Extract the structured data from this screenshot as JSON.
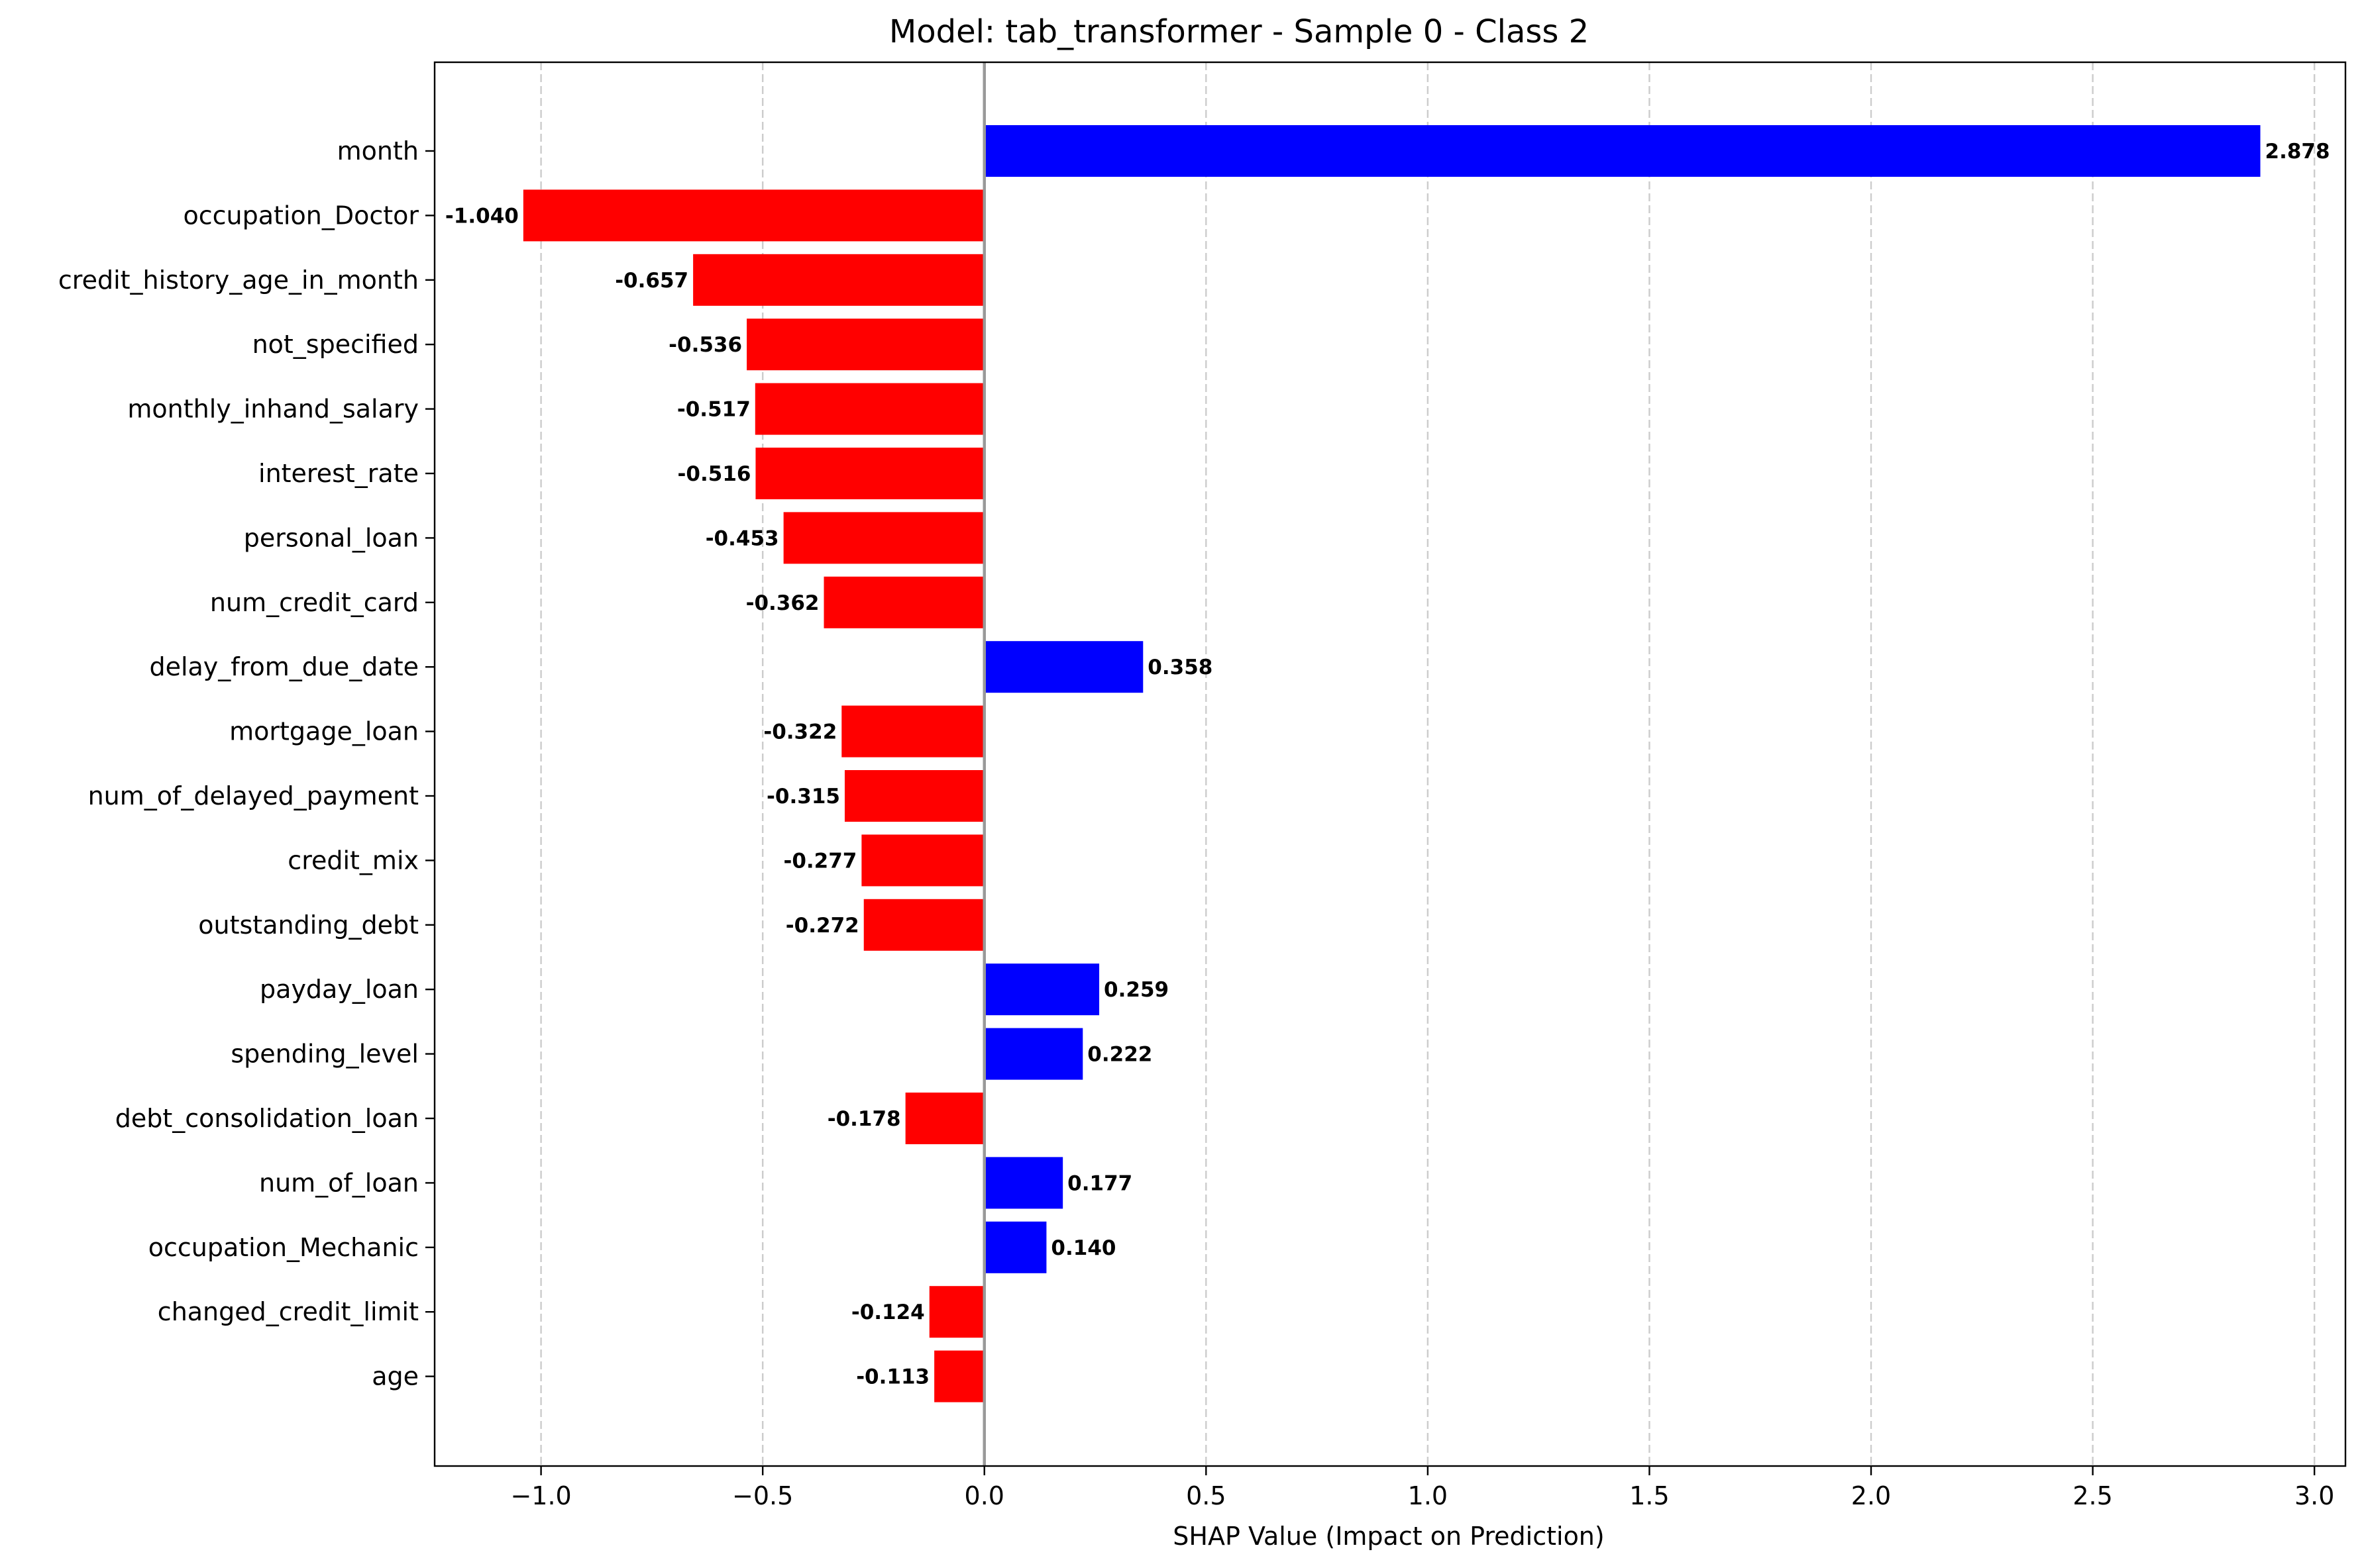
{
  "chart_data": {
    "type": "bar",
    "orientation": "horizontal",
    "title": "Model: tab_transformer - Sample 0 - Class 2",
    "xlabel": "SHAP Value (Impact on Prediction)",
    "ylabel": "",
    "xlim": [
      -1.24,
      3.07
    ],
    "xticks": [
      -1.0,
      -0.5,
      0.0,
      0.5,
      1.0,
      1.5,
      2.0,
      2.5,
      3.0
    ],
    "xtick_labels": [
      "−1.0",
      "−0.5",
      "0.0",
      "0.5",
      "1.0",
      "1.5",
      "2.0",
      "2.5",
      "3.0"
    ],
    "grid": "x-dashed",
    "colors": {
      "positive": "#0000ff",
      "negative": "#ff0000",
      "zero_line": "#999999",
      "grid": "#cccccc"
    },
    "categories": [
      "month",
      "occupation_Doctor",
      "credit_history_age_in_month",
      "not_specified",
      "monthly_inhand_salary",
      "interest_rate",
      "personal_loan",
      "num_credit_card",
      "delay_from_due_date",
      "mortgage_loan",
      "num_of_delayed_payment",
      "credit_mix",
      "outstanding_debt",
      "payday_loan",
      "spending_level",
      "debt_consolidation_loan",
      "num_of_loan",
      "occupation_Mechanic",
      "changed_credit_limit",
      "age"
    ],
    "values": [
      2.878,
      -1.04,
      -0.657,
      -0.536,
      -0.517,
      -0.516,
      -0.453,
      -0.362,
      0.358,
      -0.322,
      -0.315,
      -0.277,
      -0.272,
      0.259,
      0.222,
      -0.178,
      0.177,
      0.14,
      -0.124,
      -0.113
    ],
    "value_labels": [
      "2.878",
      "-1.040",
      "-0.657",
      "-0.536",
      "-0.517",
      "-0.516",
      "-0.453",
      "-0.362",
      "0.358",
      "-0.322",
      "-0.315",
      "-0.277",
      "-0.272",
      "0.259",
      "0.222",
      "-0.178",
      "0.177",
      "0.140",
      "-0.124",
      "-0.113"
    ]
  }
}
